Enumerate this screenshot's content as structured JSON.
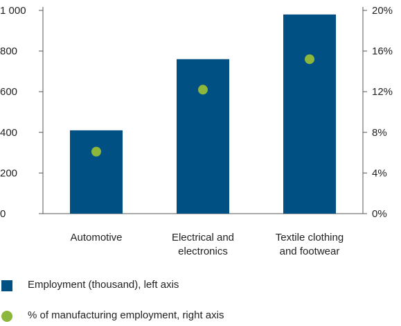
{
  "chart_data": {
    "type": "bar",
    "categories": [
      [
        "Automotive"
      ],
      [
        "Electrical and",
        "electronics"
      ],
      [
        "Textile clothing",
        "and footwear"
      ]
    ],
    "series": [
      {
        "name": "Employment (thousand), left axis",
        "type": "bar",
        "axis": "left",
        "values": [
          410,
          760,
          980
        ],
        "color": "#005084"
      },
      {
        "name": "% of manufacturing employment, right axis",
        "type": "scatter",
        "axis": "right",
        "values": [
          6.1,
          12.2,
          15.2
        ],
        "color": "#8cb63c"
      }
    ],
    "y_left": {
      "lim": [
        0,
        1000
      ],
      "ticks": [
        0,
        200,
        400,
        600,
        800,
        1000
      ],
      "tick_labels": [
        "0",
        "200",
        "400",
        "600",
        "800",
        "1 000"
      ]
    },
    "y_right": {
      "lim": [
        0,
        20
      ],
      "ticks": [
        0,
        4,
        8,
        12,
        16,
        20
      ],
      "tick_labels": [
        "0%",
        "4%",
        "8%",
        "12%",
        "16%",
        "20%"
      ]
    },
    "grid": false,
    "legend_position": "bottom-left"
  },
  "legend": {
    "bar_label": "Employment (thousand), left axis",
    "dot_label": "% of manufacturing employment, right axis"
  }
}
